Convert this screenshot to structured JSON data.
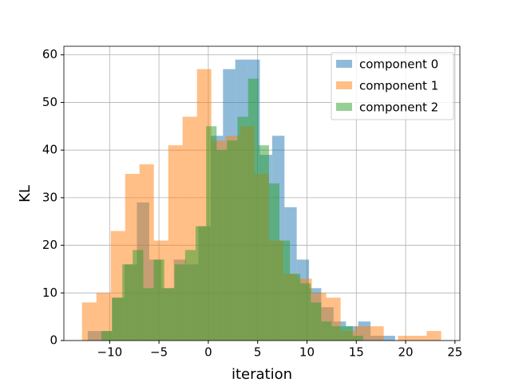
{
  "chart_data": {
    "type": "histogram",
    "x_label": "iteration",
    "y_label": "KL",
    "xlim": [
      -14.64,
      25.5
    ],
    "ylim": [
      0,
      61.8
    ],
    "xticks": [
      {
        "value": -10,
        "label": "−10"
      },
      {
        "value": -5,
        "label": "−5"
      },
      0,
      5,
      10,
      15,
      20,
      25
    ],
    "yticks": [
      0,
      10,
      20,
      30,
      40,
      50,
      60
    ],
    "grid": true,
    "legend": "upper right",
    "alpha": 0.5,
    "series": [
      {
        "name": "component 0",
        "color": "#1f77b4",
        "bins": [
          -12.22,
          -10.97,
          -9.73,
          -8.48,
          -7.24,
          -5.99,
          -4.74,
          -3.5,
          -2.25,
          -1.01,
          0.24,
          1.49,
          2.73,
          3.98,
          5.22,
          6.47,
          7.72,
          8.96,
          10.21,
          11.45,
          12.7,
          13.95,
          15.19,
          16.44,
          17.68,
          18.93
        ],
        "values": [
          2,
          2,
          9,
          16,
          29,
          17,
          11,
          17,
          16,
          24,
          43,
          57,
          59,
          59,
          39,
          43,
          28,
          17,
          11,
          7,
          4,
          3,
          4,
          1,
          1
        ]
      },
      {
        "name": "component 1",
        "color": "#ff7f0e",
        "bins": [
          -12.8,
          -11.34,
          -9.89,
          -8.43,
          -6.98,
          -5.52,
          -4.06,
          -2.61,
          -1.15,
          0.3,
          1.76,
          3.22,
          4.67,
          6.13,
          7.58,
          9.04,
          10.5,
          11.95,
          13.41,
          14.86,
          16.32,
          17.78,
          19.23,
          20.69,
          22.14,
          23.6
        ],
        "values": [
          8,
          10,
          23,
          35,
          37,
          21,
          41,
          47,
          57,
          42,
          43,
          45,
          35,
          21,
          14,
          13,
          10,
          9,
          2,
          3,
          3,
          0,
          1,
          1,
          2
        ]
      },
      {
        "name": "component 2",
        "color": "#2ca02c",
        "bins": [
          -10.84,
          -9.78,
          -8.72,
          -7.66,
          -6.59,
          -5.53,
          -4.47,
          -3.41,
          -2.35,
          -1.29,
          -0.22,
          0.84,
          1.9,
          2.96,
          4.02,
          5.08,
          6.15,
          7.21,
          8.27,
          9.33,
          10.39,
          11.45,
          12.51,
          13.57,
          14.64,
          15.7
        ],
        "values": [
          2,
          9,
          16,
          19,
          11,
          17,
          11,
          16,
          19,
          24,
          45,
          40,
          42,
          47,
          55,
          41,
          33,
          21,
          14,
          12,
          8,
          4,
          3,
          3,
          1
        ]
      }
    ]
  }
}
